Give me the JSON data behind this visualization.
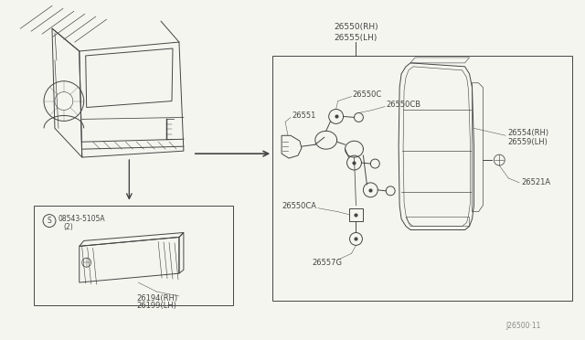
{
  "bg_color": "#f5f5f0",
  "line_color": "#444444",
  "text_color": "#444444",
  "figsize": [
    6.4,
    3.72
  ],
  "dpi": 100,
  "parts": {
    "main_label_1": "26550(RH)",
    "main_label_2": "26555(LH)",
    "p26551": "26551",
    "p26550C": "26550C",
    "p26550CB": "26550CB",
    "p26550CA": "26550CA",
    "p26557G": "26557G",
    "p26554": "26554(RH)",
    "p26559": "26559(LH)",
    "p26521A": "26521A",
    "sub_label_1": "26194(RH)",
    "sub_label_2": "26199(LH)",
    "screw_part": "08543-5105A",
    "screw_qty": "(2)"
  }
}
